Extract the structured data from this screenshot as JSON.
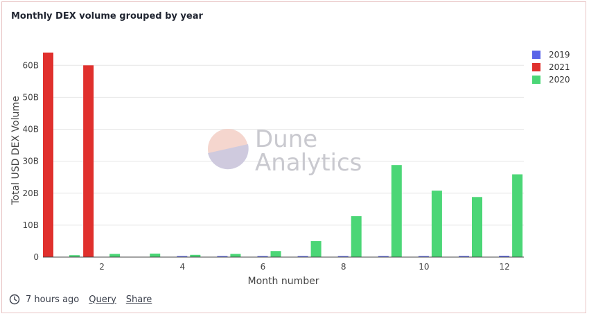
{
  "header": {
    "title": "Monthly DEX volume grouped by year"
  },
  "footer": {
    "time_ago": "7 hours ago",
    "query_label": "Query",
    "share_label": "Share"
  },
  "watermark": {
    "line1": "Dune",
    "line2": "Analytics"
  },
  "colors": {
    "2019": "#5964e8",
    "2021": "#e0302d",
    "2020": "#4bd676"
  },
  "chart_data": {
    "type": "bar",
    "title": "Monthly DEX volume grouped by year",
    "xlabel": "Month number",
    "ylabel": "Total USD DEX Volume",
    "x": [
      1,
      2,
      3,
      4,
      5,
      6,
      7,
      8,
      9,
      10,
      11,
      12
    ],
    "x_tick_labels": [
      "2",
      "4",
      "6",
      "8",
      "10",
      "12"
    ],
    "x_tick_values": [
      2,
      4,
      6,
      8,
      10,
      12
    ],
    "y_tick_labels": [
      "0",
      "10B",
      "20B",
      "30B",
      "40B",
      "50B",
      "60B"
    ],
    "y_tick_values": [
      0,
      10,
      20,
      30,
      40,
      50,
      60
    ],
    "ylim": [
      0,
      67
    ],
    "units": "billions USD",
    "legend_position": "right",
    "grid": true,
    "series": [
      {
        "name": "2019",
        "values": [
          0,
          0,
          0,
          0.05,
          0.1,
          0.15,
          0.2,
          0.25,
          0.3,
          0.3,
          0.35,
          0.4
        ]
      },
      {
        "name": "2021",
        "values": [
          64,
          60,
          0,
          0,
          0,
          0,
          0,
          0,
          0,
          0,
          0,
          0
        ]
      },
      {
        "name": "2020",
        "values": [
          0.6,
          1.0,
          1.1,
          0.7,
          1.0,
          1.9,
          5.0,
          12.8,
          28.8,
          20.8,
          18.8,
          25.9
        ]
      }
    ],
    "legend_order": [
      "2019",
      "2021",
      "2020"
    ]
  }
}
